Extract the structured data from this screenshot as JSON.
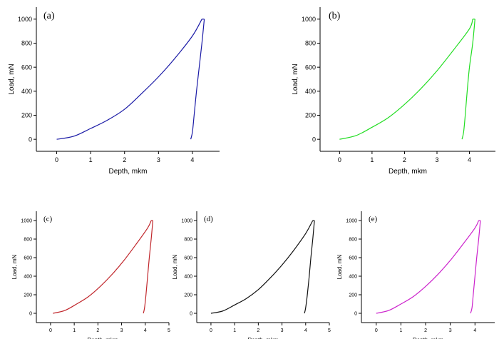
{
  "chart_data": [
    {
      "type": "line",
      "panel_label": "(a)",
      "xlabel": "Depth, mkm",
      "ylabel": "Load, mN",
      "xlim": [
        -0.6,
        4.8
      ],
      "ylim": [
        -100,
        1100
      ],
      "xticks": [
        0,
        1,
        2,
        3,
        4
      ],
      "yticks": [
        0,
        200,
        400,
        600,
        800,
        1000
      ],
      "color": "#1a1aa6",
      "loading": {
        "x": [
          0,
          0.5,
          1.0,
          1.5,
          2.0,
          2.5,
          3.0,
          3.5,
          4.0,
          4.28
        ],
        "y": [
          0,
          25,
          90,
          160,
          250,
          380,
          520,
          680,
          860,
          1000
        ]
      },
      "plateau": {
        "x": [
          4.28,
          4.35
        ],
        "y": [
          1000,
          1000
        ]
      },
      "unloading": {
        "x": [
          4.35,
          4.28,
          4.2,
          4.12,
          4.05,
          4.0,
          3.95
        ],
        "y": [
          1000,
          800,
          600,
          400,
          200,
          60,
          0
        ]
      }
    },
    {
      "type": "line",
      "panel_label": "(b)",
      "xlabel": "Depth, mkm",
      "ylabel": "Load, mN",
      "xlim": [
        -0.6,
        4.8
      ],
      "ylim": [
        -100,
        1100
      ],
      "xticks": [
        0,
        1,
        2,
        3,
        4
      ],
      "yticks": [
        0,
        200,
        400,
        600,
        800,
        1000
      ],
      "color": "#22dd22",
      "loading": {
        "x": [
          0,
          0.5,
          1.0,
          1.5,
          2.0,
          2.5,
          3.0,
          3.5,
          4.0,
          4.1
        ],
        "y": [
          0,
          30,
          100,
          180,
          290,
          420,
          570,
          740,
          920,
          1000
        ]
      },
      "plateau": {
        "x": [
          4.1,
          4.17
        ],
        "y": [
          1000,
          1000
        ]
      },
      "unloading": {
        "x": [
          4.17,
          4.1,
          4.0,
          3.93,
          3.87,
          3.82,
          3.77
        ],
        "y": [
          1000,
          800,
          600,
          400,
          200,
          60,
          0
        ]
      }
    },
    {
      "type": "line",
      "panel_label": "(c)",
      "xlabel": "Depth, mkm",
      "ylabel": "Load, mN",
      "xlim": [
        -0.6,
        5.0
      ],
      "ylim": [
        -100,
        1100
      ],
      "xticks": [
        0,
        1,
        2,
        3,
        4,
        5
      ],
      "yticks": [
        0,
        200,
        400,
        600,
        800,
        1000
      ],
      "color": "#c0262b",
      "loading": {
        "x": [
          0.1,
          0.6,
          1.1,
          1.6,
          2.1,
          2.6,
          3.1,
          3.6,
          4.1,
          4.25
        ],
        "y": [
          0,
          30,
          100,
          180,
          290,
          420,
          570,
          740,
          920,
          1000
        ]
      },
      "plateau": {
        "x": [
          4.25,
          4.32
        ],
        "y": [
          1000,
          1000
        ]
      },
      "unloading": {
        "x": [
          4.32,
          4.25,
          4.17,
          4.1,
          4.03,
          3.97,
          3.92
        ],
        "y": [
          1000,
          800,
          600,
          400,
          200,
          60,
          0
        ]
      }
    },
    {
      "type": "line",
      "panel_label": "(d)",
      "xlabel": "Depth, mkm",
      "ylabel": "Load, mN",
      "xlim": [
        -0.6,
        5.0
      ],
      "ylim": [
        -100,
        1100
      ],
      "xticks": [
        0,
        1,
        2,
        3,
        4,
        5
      ],
      "yticks": [
        0,
        200,
        400,
        600,
        800,
        1000
      ],
      "color": "#111111",
      "loading": {
        "x": [
          0,
          0.5,
          1.0,
          1.5,
          2.0,
          2.5,
          3.0,
          3.5,
          4.0,
          4.3
        ],
        "y": [
          0,
          25,
          90,
          160,
          255,
          380,
          520,
          680,
          860,
          1000
        ]
      },
      "plateau": {
        "x": [
          4.3,
          4.37
        ],
        "y": [
          1000,
          1000
        ]
      },
      "unloading": {
        "x": [
          4.37,
          4.3,
          4.22,
          4.15,
          4.07,
          4.0,
          3.95
        ],
        "y": [
          1000,
          800,
          600,
          400,
          200,
          60,
          0
        ]
      }
    },
    {
      "type": "line",
      "panel_label": "(e)",
      "xlabel": "Depth, mkm",
      "ylabel": "Load, mN",
      "xlim": [
        -0.6,
        4.8
      ],
      "ylim": [
        -100,
        1100
      ],
      "xticks": [
        0,
        1,
        2,
        3,
        4
      ],
      "yticks": [
        0,
        200,
        400,
        600,
        800,
        1000
      ],
      "color": "#cc22cc",
      "loading": {
        "x": [
          0,
          0.5,
          1.0,
          1.5,
          2.0,
          2.5,
          3.0,
          3.5,
          4.0,
          4.15
        ],
        "y": [
          0,
          30,
          100,
          180,
          290,
          420,
          570,
          740,
          920,
          1000
        ]
      },
      "plateau": {
        "x": [
          4.15,
          4.22
        ],
        "y": [
          1000,
          1000
        ]
      },
      "unloading": {
        "x": [
          4.22,
          4.15,
          4.07,
          4.0,
          3.93,
          3.88,
          3.82
        ],
        "y": [
          1000,
          800,
          600,
          400,
          200,
          60,
          0
        ]
      }
    }
  ]
}
